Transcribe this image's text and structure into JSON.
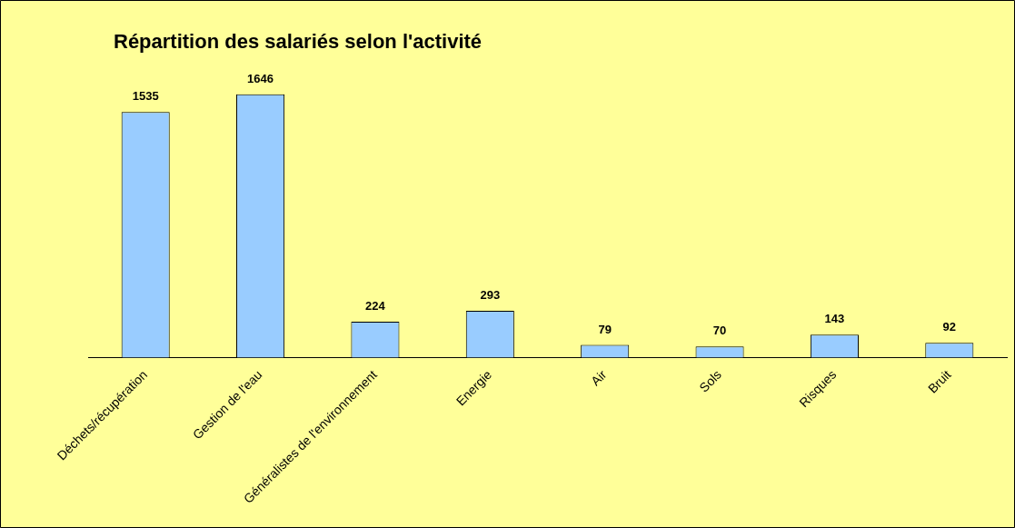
{
  "chart_data": {
    "type": "bar",
    "title": "Répartition des salariés selon l'activité",
    "categories": [
      "Déchets/récupération",
      "Gestion de l'eau",
      "Généralistes de l'environnement",
      "Energie",
      "Air",
      "Sols",
      "Risques",
      "Bruit"
    ],
    "values": [
      1535,
      1646,
      224,
      293,
      79,
      70,
      143,
      92
    ],
    "color": "#99ccff",
    "data_labels": true,
    "grid": false,
    "legend": false
  }
}
